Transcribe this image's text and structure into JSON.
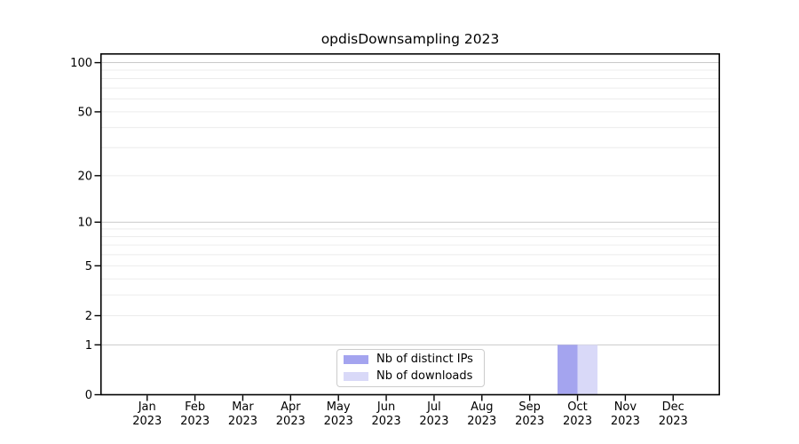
{
  "chart_data": {
    "type": "bar",
    "title": "opdisDownsampling 2023",
    "x_categories": [
      "Jan",
      "Feb",
      "Mar",
      "Apr",
      "May",
      "Jun",
      "Jul",
      "Aug",
      "Sep",
      "Oct",
      "Nov",
      "Dec"
    ],
    "x_category_year": "2023",
    "series": [
      {
        "name": "Nb of distinct IPs",
        "color": "#a4a4ef",
        "values": [
          0,
          0,
          0,
          0,
          0,
          0,
          0,
          0,
          0,
          1,
          0,
          0
        ]
      },
      {
        "name": "Nb of downloads",
        "color": "#d9d9f8",
        "values": [
          0,
          0,
          0,
          0,
          0,
          0,
          0,
          0,
          0,
          1,
          0,
          0
        ]
      }
    ],
    "yscale": "log1p",
    "ylim": [
      0,
      113
    ],
    "yticks_labeled": [
      0,
      1,
      2,
      5,
      10,
      20,
      50,
      100
    ],
    "yticks_major_grid": [
      1,
      10,
      100
    ],
    "yticks_minor_grid": [
      2,
      3,
      4,
      5,
      6,
      7,
      8,
      9,
      20,
      30,
      40,
      50,
      60,
      70,
      80,
      90
    ],
    "grid": true,
    "legend_position": "lower center, inside plot"
  }
}
